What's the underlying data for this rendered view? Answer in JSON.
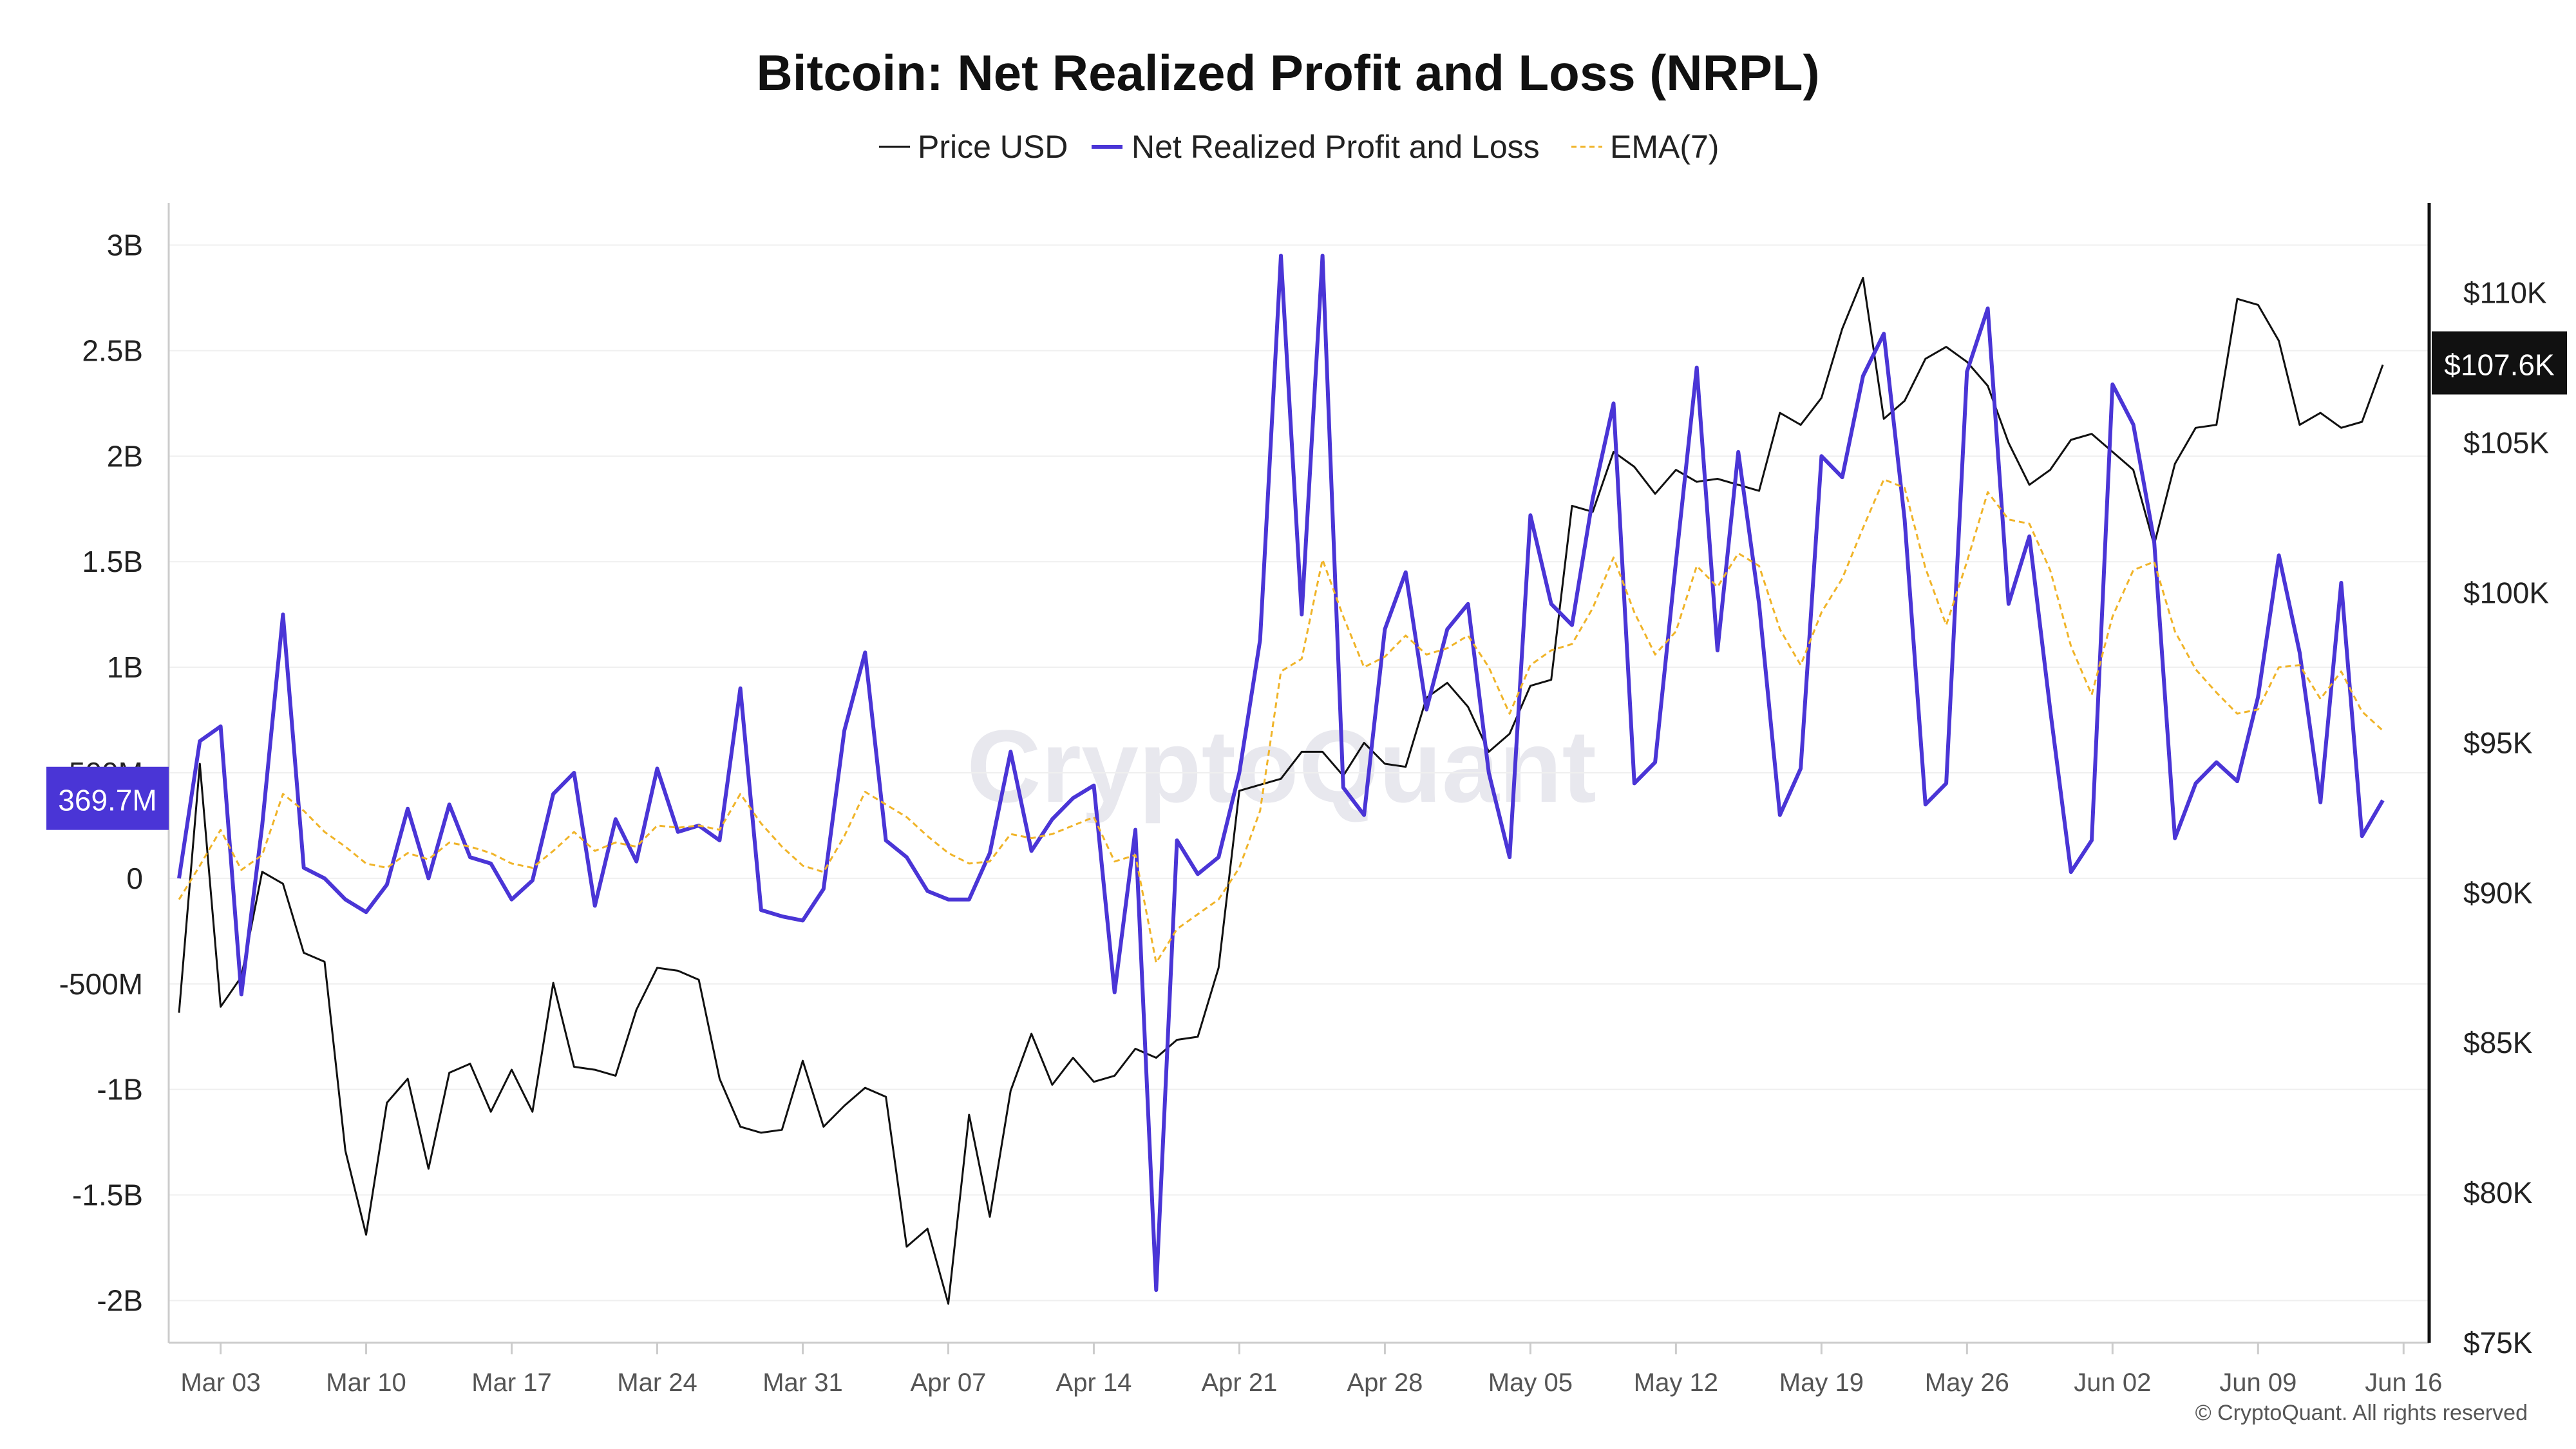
{
  "chart_data": {
    "type": "line",
    "title": "Bitcoin: Net Realized Profit and Loss (NRPL)",
    "legend": {
      "placement": "top-center",
      "entries": [
        {
          "label": "Price USD",
          "color": "#111111",
          "style": "solid"
        },
        {
          "label": "Net Realized Profit and Loss",
          "color": "#4a35d6",
          "style": "solid"
        },
        {
          "label": "EMA(7)",
          "color": "#f0b429",
          "style": "dashed"
        }
      ]
    },
    "x_ticks": [
      "Mar 03",
      "Mar 10",
      "Mar 17",
      "Mar 24",
      "Mar 31",
      "Apr 07",
      "Apr 14",
      "Apr 21",
      "Apr 28",
      "May 05",
      "May 12",
      "May 19",
      "May 26",
      "Jun 02",
      "Jun 09",
      "Jun 16"
    ],
    "x_range": [
      "2025-03-01",
      "2025-06-16"
    ],
    "y_left": {
      "range": [
        -2200000000,
        3200000000
      ],
      "tick_values": [
        3000000000,
        2500000000,
        2000000000,
        1500000000,
        1000000000,
        500000000,
        0,
        -500000000,
        -1000000000,
        -1500000000,
        -2000000000
      ],
      "tick_labels": [
        "3B",
        "2.5B",
        "2B",
        "1.5B",
        "1B",
        "500M",
        "0",
        "-500M",
        "-1B",
        "-1.5B",
        "-2B"
      ],
      "current_label": "369.7M",
      "current_value": 369700000
    },
    "y_right": {
      "range": [
        75000,
        113000
      ],
      "tick_values": [
        110000,
        105000,
        100000,
        95000,
        90000,
        85000,
        80000,
        75000
      ],
      "tick_labels": [
        "$110K",
        "$105K",
        "$100K",
        "$95K",
        "$90K",
        "$85K",
        "$80K",
        "$75K"
      ],
      "current_label": "$107.6K",
      "current_value": 107600
    },
    "grid": true,
    "series": [
      {
        "name": "Price USD",
        "axis": "right",
        "color": "#111111",
        "values": [
          86000,
          94300,
          86200,
          87200,
          90700,
          90300,
          88000,
          87700,
          81400,
          78600,
          83000,
          83800,
          80800,
          84000,
          84300,
          82700,
          84100,
          82700,
          87000,
          84200,
          84100,
          83900,
          86100,
          87500,
          87400,
          87100,
          83800,
          82200,
          82000,
          82100,
          84400,
          82200,
          82900,
          83500,
          83200,
          78200,
          78800,
          76300,
          82600,
          79200,
          83400,
          85300,
          83600,
          84500,
          83700,
          83900,
          84800,
          84500,
          85100,
          85200,
          87500,
          93400,
          93600,
          93800,
          94700,
          94700,
          93900,
          95000,
          94300,
          94200,
          96500,
          97000,
          96200,
          94700,
          95300,
          96900,
          97100,
          102900,
          102700,
          104700,
          104200,
          103300,
          104100,
          103700,
          103800,
          103600,
          103400,
          106000,
          105600,
          106500,
          108800,
          110500,
          105800,
          106400,
          107800,
          108200,
          107700,
          106900,
          105000,
          103600,
          104100,
          105100,
          105300,
          104700,
          104100,
          101600,
          104300,
          105500,
          105600,
          109800,
          109600,
          108400,
          105600,
          106000,
          105500,
          105700,
          107600
        ]
      },
      {
        "name": "Net Realized Profit and Loss",
        "axis": "left",
        "color": "#4a35d6",
        "values": [
          0,
          650000000,
          720000000,
          -550000000,
          250000000,
          1250000000,
          50000000,
          0,
          -100000000,
          -160000000,
          -30000000,
          330000000,
          0,
          350000000,
          100000000,
          70000000,
          -100000000,
          -10000000,
          400000000,
          500000000,
          -130000000,
          280000000,
          80000000,
          520000000,
          220000000,
          250000000,
          180000000,
          900000000,
          -150000000,
          -180000000,
          -200000000,
          -50000000,
          700000000,
          1070000000,
          180000000,
          100000000,
          -60000000,
          -100000000,
          -100000000,
          120000000,
          600000000,
          130000000,
          280000000,
          380000000,
          440000000,
          -540000000,
          230000000,
          -1950000000,
          180000000,
          20000000,
          100000000,
          500000000,
          1130000000,
          2950000000,
          1250000000,
          2950000000,
          430000000,
          300000000,
          1180000000,
          1450000000,
          800000000,
          1180000000,
          1300000000,
          500000000,
          100000000,
          1720000000,
          1300000000,
          1200000000,
          1800000000,
          2250000000,
          450000000,
          550000000,
          1500000000,
          2420000000,
          1080000000,
          2020000000,
          1300000000,
          300000000,
          520000000,
          2000000000,
          1900000000,
          2380000000,
          2580000000,
          1700000000,
          350000000,
          450000000,
          2400000000,
          2700000000,
          1300000000,
          1620000000,
          800000000,
          30000000,
          180000000,
          2340000000,
          2150000000,
          1600000000,
          190000000,
          450000000,
          550000000,
          460000000,
          860000000,
          1530000000,
          1070000000,
          360000000,
          1400000000,
          200000000,
          369700000
        ]
      },
      {
        "name": "EMA(7)",
        "axis": "left",
        "color": "#f0b429",
        "values": [
          -100000000,
          60000000,
          230000000,
          40000000,
          110000000,
          400000000,
          320000000,
          220000000,
          150000000,
          70000000,
          50000000,
          120000000,
          90000000,
          170000000,
          150000000,
          120000000,
          70000000,
          50000000,
          130000000,
          220000000,
          130000000,
          170000000,
          150000000,
          250000000,
          240000000,
          250000000,
          230000000,
          400000000,
          260000000,
          150000000,
          60000000,
          30000000,
          200000000,
          410000000,
          350000000,
          290000000,
          200000000,
          120000000,
          70000000,
          80000000,
          210000000,
          190000000,
          210000000,
          250000000,
          290000000,
          80000000,
          110000000,
          -400000000,
          -240000000,
          -170000000,
          -100000000,
          50000000,
          320000000,
          980000000,
          1040000000,
          1510000000,
          1240000000,
          1000000000,
          1050000000,
          1150000000,
          1060000000,
          1090000000,
          1150000000,
          1000000000,
          780000000,
          1010000000,
          1080000000,
          1110000000,
          1280000000,
          1520000000,
          1260000000,
          1060000000,
          1170000000,
          1480000000,
          1380000000,
          1540000000,
          1480000000,
          1180000000,
          1010000000,
          1260000000,
          1420000000,
          1660000000,
          1890000000,
          1850000000,
          1470000000,
          1200000000,
          1500000000,
          1830000000,
          1700000000,
          1680000000,
          1460000000,
          1100000000,
          870000000,
          1240000000,
          1460000000,
          1500000000,
          1170000000,
          990000000,
          880000000,
          780000000,
          800000000,
          1000000000,
          1010000000,
          850000000,
          980000000,
          790000000,
          700000000
        ]
      }
    ],
    "watermark": "CryptoQuant",
    "copyright": "© CryptoQuant. All rights reserved"
  }
}
